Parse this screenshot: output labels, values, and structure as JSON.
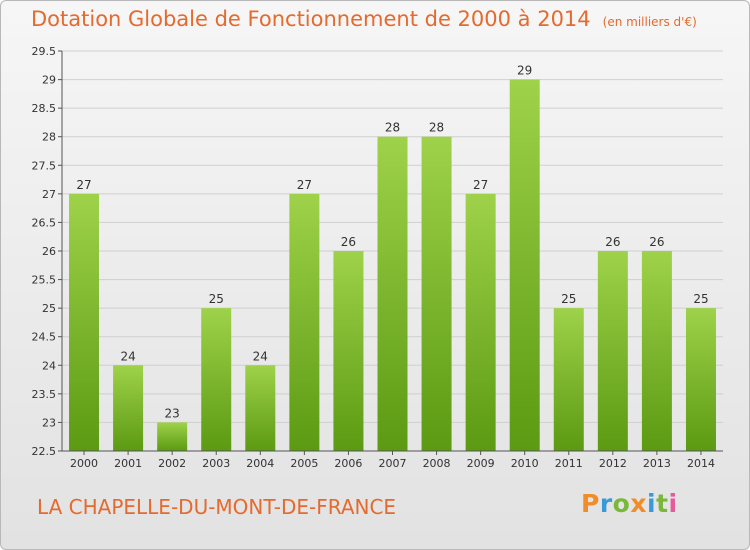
{
  "header": {
    "title": "Dotation Globale de Fonctionnement de 2000 à 2014",
    "subtitle": "(en milliers d'€)"
  },
  "footer": {
    "commune": "LA CHAPELLE-DU-MONT-DE-FRANCE",
    "logo_text": "Proxiti",
    "logo_colors": [
      "#f28c28",
      "#3a9ad9",
      "#7ab83a",
      "#f28c28",
      "#3a9ad9",
      "#7ab83a",
      "#e85a9a"
    ]
  },
  "colors": {
    "accent": "#e56a2e",
    "bar_top": "#9ed24a",
    "bar_bottom": "#5b9a12",
    "grid": "#cfcfcf",
    "axis": "#555555",
    "text": "#333333"
  },
  "chart_data": {
    "type": "bar",
    "title": "Dotation Globale de Fonctionnement de 2000 à 2014",
    "subtitle": "(en milliers d'€)",
    "categories": [
      "2000",
      "2001",
      "2002",
      "2003",
      "2004",
      "2005",
      "2006",
      "2007",
      "2008",
      "2009",
      "2010",
      "2011",
      "2012",
      "2013",
      "2014"
    ],
    "values": [
      27,
      24,
      23,
      25,
      24,
      27,
      26,
      28,
      28,
      27,
      29,
      25,
      26,
      26,
      25
    ],
    "data_labels": [
      "27",
      "24",
      "23",
      "25",
      "24",
      "27",
      "26",
      "28",
      "28",
      "27",
      "29",
      "25",
      "26",
      "26",
      "25"
    ],
    "ylim": [
      22.5,
      29.5
    ],
    "yticks": [
      "22.5",
      "23",
      "23.5",
      "24",
      "24.5",
      "25",
      "25.5",
      "26",
      "26.5",
      "27",
      "27.5",
      "28",
      "28.5",
      "29",
      "29.5"
    ],
    "grid": true,
    "legend": "none",
    "xlabel": "",
    "ylabel": ""
  }
}
